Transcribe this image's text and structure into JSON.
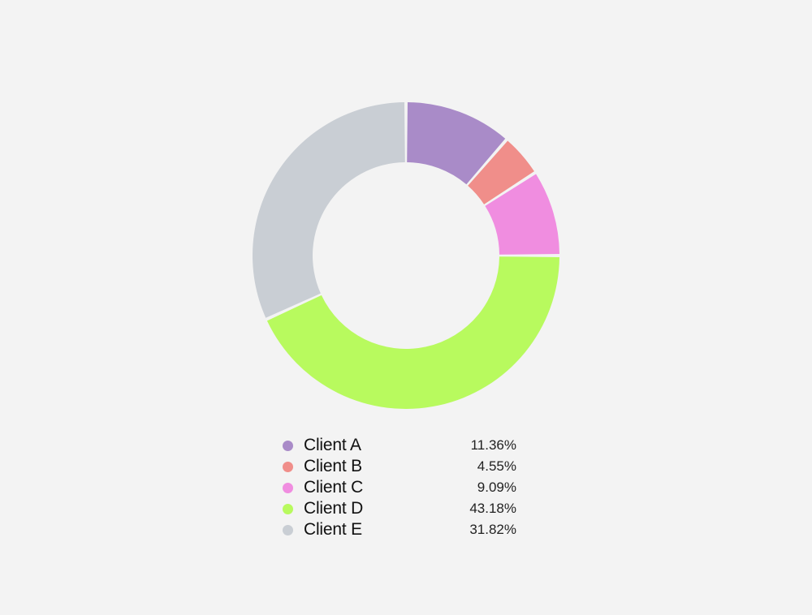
{
  "chart_data": {
    "type": "pie",
    "style": "donut",
    "categories": [
      "Client A",
      "Client B",
      "Client C",
      "Client D",
      "Client E"
    ],
    "values": [
      11.36,
      4.55,
      9.09,
      43.18,
      31.82
    ],
    "value_labels": [
      "11.36%",
      "4.55%",
      "9.09%",
      "43.18%",
      "31.82%"
    ],
    "colors": [
      "#a98bc8",
      "#f08e8a",
      "#f08de0",
      "#b8fa5e",
      "#c9ced4"
    ],
    "legend_position": "bottom",
    "start_angle": "top",
    "direction": "clockwise"
  },
  "background_color": "#f3f3f3"
}
